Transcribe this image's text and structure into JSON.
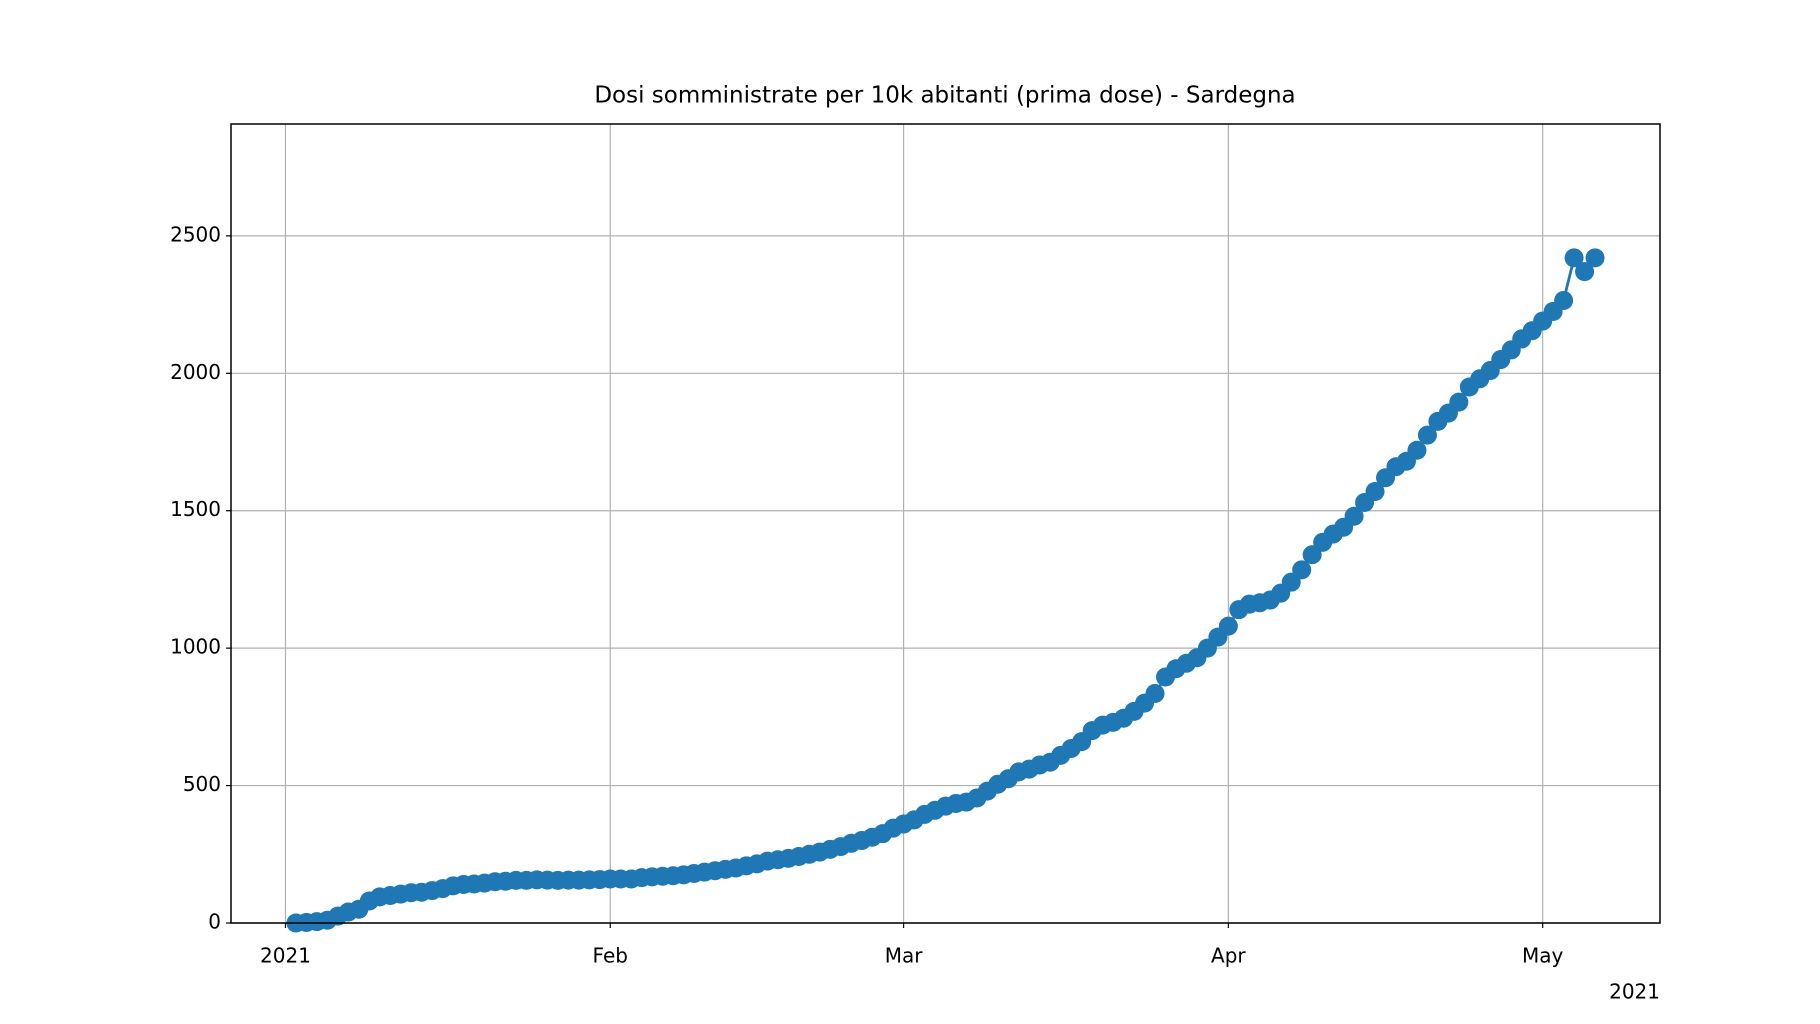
{
  "chart_data": {
    "type": "line",
    "title": "Dosi somministrate per 10k abitanti (prima dose) - Sardegna",
    "x": [
      1,
      2,
      3,
      4,
      5,
      6,
      7,
      8,
      9,
      10,
      11,
      12,
      13,
      14,
      15,
      16,
      17,
      18,
      19,
      20,
      21,
      22,
      23,
      24,
      25,
      26,
      27,
      28,
      29,
      30,
      31,
      32,
      33,
      34,
      35,
      36,
      37,
      38,
      39,
      40,
      41,
      42,
      43,
      44,
      45,
      46,
      47,
      48,
      49,
      50,
      51,
      52,
      53,
      54,
      55,
      56,
      57,
      58,
      59,
      60,
      61,
      62,
      63,
      64,
      65,
      66,
      67,
      68,
      69,
      70,
      71,
      72,
      73,
      74,
      75,
      76,
      77,
      78,
      79,
      80,
      81,
      82,
      83,
      84,
      85,
      86,
      87,
      88,
      89,
      90,
      91,
      92,
      93,
      94,
      95,
      96,
      97,
      98,
      99,
      100,
      101,
      102,
      103,
      104,
      105,
      106,
      107,
      108,
      109,
      110,
      111,
      112,
      113,
      114,
      115,
      116,
      117,
      118,
      119,
      120,
      121,
      122,
      123,
      124,
      125
    ],
    "series": [
      {
        "color": "#1f77b4",
        "values": [
          0,
          2,
          5,
          10,
          25,
          40,
          50,
          80,
          95,
          100,
          105,
          110,
          112,
          118,
          125,
          135,
          140,
          142,
          145,
          150,
          152,
          155,
          155,
          157,
          156,
          155,
          156,
          156,
          157,
          158,
          160,
          160,
          160,
          165,
          168,
          170,
          172,
          175,
          180,
          185,
          190,
          195,
          200,
          208,
          215,
          225,
          230,
          235,
          242,
          250,
          258,
          268,
          278,
          290,
          300,
          312,
          325,
          345,
          360,
          375,
          395,
          410,
          425,
          435,
          440,
          455,
          480,
          505,
          525,
          550,
          560,
          575,
          585,
          610,
          635,
          660,
          700,
          720,
          730,
          745,
          770,
          800,
          835,
          895,
          925,
          945,
          965,
          1000,
          1040,
          1080,
          1140,
          1160,
          1165,
          1175,
          1200,
          1240,
          1285,
          1340,
          1385,
          1415,
          1440,
          1480,
          1530,
          1570,
          1620,
          1660,
          1680,
          1720,
          1775,
          1825,
          1855,
          1895,
          1950,
          1980,
          2010,
          2050,
          2085,
          2125,
          2155,
          2190,
          2225,
          2265,
          2420,
          2370,
          2420
        ]
      }
    ],
    "xlim": [
      -5.2,
      131.2
    ],
    "xticks": [
      {
        "value": 0,
        "label": "2021"
      },
      {
        "value": 31,
        "label": "Feb"
      },
      {
        "value": 59,
        "label": "Mar"
      },
      {
        "value": 90,
        "label": "Apr"
      },
      {
        "value": 120,
        "label": "May"
      }
    ],
    "x_offset_label": "2021",
    "ylim": [
      0,
      2907
    ],
    "yticks": [
      0,
      500,
      1000,
      1500,
      2000,
      2500
    ],
    "grid": true
  }
}
